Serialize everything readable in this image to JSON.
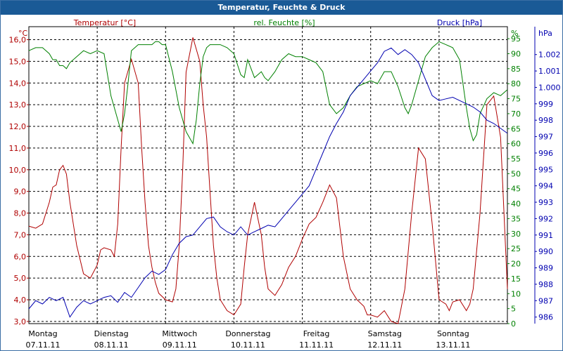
{
  "window": {
    "title": "Temperatur, Feuchte & Druck"
  },
  "chart_data": {
    "type": "line",
    "title": "Temperatur, Feuchte & Druck",
    "grid": true,
    "x_categories": [
      {
        "day": "Montag",
        "date": "07.11.11"
      },
      {
        "day": "Dienstag",
        "date": "08.11.11"
      },
      {
        "day": "Mittwoch",
        "date": "09.11.11"
      },
      {
        "day": "Donnerstag",
        "date": "10.11.11"
      },
      {
        "day": "Freitag",
        "date": "11.11.11"
      },
      {
        "day": "Samstag",
        "date": "12.11.11"
      },
      {
        "day": "Sonntag",
        "date": "13.11.11"
      }
    ],
    "x_range": [
      0,
      7
    ],
    "axes": {
      "temperature": {
        "label": "Temperatur [°C]",
        "unit": "°C",
        "range": [
          2.9,
          16.6
        ],
        "ticks": [
          "3,0",
          "4,0",
          "5,0",
          "6,0",
          "7,0",
          "8,0",
          "9,0",
          "10,0",
          "11,0",
          "12,0",
          "13,0",
          "14,0",
          "15,0",
          "16,0"
        ],
        "color": "#b00000"
      },
      "humidity": {
        "label": "rel. Feuchte [%]",
        "unit": "%",
        "range": [
          0,
          99
        ],
        "ticks": [
          "0",
          "5",
          "10",
          "15",
          "20",
          "25",
          "30",
          "35",
          "40",
          "45",
          "50",
          "55",
          "60",
          "65",
          "70",
          "75",
          "80",
          "85",
          "90",
          "95"
        ],
        "color": "#008000"
      },
      "pressure": {
        "label": "Druck [hPa]",
        "unit": "hPa",
        "range": [
          985.6,
          1003.7
        ],
        "ticks": [
          "986",
          "987",
          "988",
          "989",
          "990",
          "991",
          "992",
          "993",
          "994",
          "995",
          "996",
          "997",
          "998",
          "999",
          "1.000",
          "1.001",
          "1.002"
        ],
        "color": "#0000b0"
      }
    },
    "series": [
      {
        "name": "Temperatur [°C]",
        "axis": "temperature",
        "color": "#b00000",
        "x": [
          0,
          0.1,
          0.2,
          0.3,
          0.35,
          0.4,
          0.45,
          0.5,
          0.55,
          0.6,
          0.7,
          0.8,
          0.9,
          1.0,
          1.05,
          1.1,
          1.2,
          1.25,
          1.3,
          1.35,
          1.4,
          1.5,
          1.6,
          1.65,
          1.7,
          1.75,
          1.8,
          1.85,
          1.9,
          2.0,
          2.1,
          2.15,
          2.2,
          2.25,
          2.3,
          2.4,
          2.5,
          2.55,
          2.6,
          2.65,
          2.7,
          2.75,
          2.8,
          2.9,
          3.0,
          3.1,
          3.15,
          3.2,
          3.3,
          3.4,
          3.45,
          3.5,
          3.6,
          3.7,
          3.8,
          3.9,
          4.0,
          4.1,
          4.2,
          4.3,
          4.4,
          4.5,
          4.6,
          4.7,
          4.8,
          4.9,
          4.95,
          5.0,
          5.1,
          5.2,
          5.3,
          5.4,
          5.5,
          5.6,
          5.7,
          5.8,
          5.9,
          6.0,
          6.1,
          6.15,
          6.2,
          6.3,
          6.4,
          6.45,
          6.5,
          6.6,
          6.7,
          6.8,
          6.9,
          7.0
        ],
        "values": [
          7.4,
          7.3,
          7.5,
          8.5,
          9.2,
          9.3,
          10.0,
          10.2,
          9.8,
          8.5,
          6.5,
          5.2,
          5.0,
          5.6,
          6.3,
          6.4,
          6.3,
          6.0,
          7.5,
          11.0,
          14.0,
          15.1,
          14.0,
          11.0,
          8.5,
          6.5,
          5.5,
          4.8,
          4.3,
          4.0,
          3.9,
          4.5,
          6.5,
          10.0,
          14.5,
          16.1,
          15.0,
          13.0,
          11.5,
          9.0,
          6.5,
          5.0,
          4.0,
          3.5,
          3.3,
          3.8,
          5.5,
          7.0,
          8.5,
          7.0,
          5.5,
          4.5,
          4.2,
          4.7,
          5.5,
          6.0,
          6.8,
          7.5,
          7.8,
          8.5,
          9.3,
          8.7,
          6.0,
          4.5,
          4.0,
          3.7,
          3.3,
          3.3,
          3.2,
          3.5,
          3.0,
          2.9,
          4.5,
          8.0,
          11.0,
          10.5,
          7.5,
          4.0,
          3.8,
          3.5,
          3.9,
          4.0,
          3.5,
          3.8,
          4.5,
          8.0,
          13.0,
          13.4,
          11.5,
          4.5
        ]
      },
      {
        "name": "rel. Feuchte [%]",
        "axis": "humidity",
        "color": "#008000",
        "x": [
          0,
          0.1,
          0.2,
          0.3,
          0.35,
          0.4,
          0.45,
          0.5,
          0.55,
          0.6,
          0.7,
          0.8,
          0.9,
          1.0,
          1.1,
          1.2,
          1.3,
          1.35,
          1.4,
          1.45,
          1.5,
          1.6,
          1.7,
          1.8,
          1.85,
          1.9,
          1.95,
          2.0,
          2.1,
          2.2,
          2.3,
          2.4,
          2.45,
          2.5,
          2.55,
          2.6,
          2.65,
          2.7,
          2.75,
          2.8,
          2.9,
          3.0,
          3.1,
          3.15,
          3.2,
          3.3,
          3.4,
          3.45,
          3.5,
          3.6,
          3.7,
          3.8,
          3.9,
          4.0,
          4.1,
          4.2,
          4.3,
          4.4,
          4.5,
          4.6,
          4.7,
          4.8,
          4.9,
          5.0,
          5.1,
          5.2,
          5.3,
          5.4,
          5.5,
          5.55,
          5.6,
          5.7,
          5.8,
          5.9,
          6.0,
          6.1,
          6.2,
          6.3,
          6.4,
          6.45,
          6.5,
          6.55,
          6.6,
          6.7,
          6.8,
          6.9,
          7.0
        ],
        "values": [
          91,
          92,
          92,
          90,
          88,
          88,
          86,
          86,
          85,
          87,
          89,
          91,
          90,
          91,
          90,
          76,
          68,
          64,
          70,
          80,
          91,
          93,
          93,
          93,
          94,
          94,
          93,
          93,
          84,
          72,
          64,
          60,
          68,
          80,
          89,
          92,
          93,
          93,
          93,
          93,
          92,
          90,
          83,
          82,
          88,
          82,
          84,
          82,
          81,
          84,
          88,
          90,
          89,
          89,
          88,
          87,
          84,
          73,
          70,
          72,
          76,
          79,
          80,
          81,
          80,
          84,
          84,
          79,
          72,
          70,
          73,
          81,
          89,
          92,
          94,
          93,
          92,
          88,
          72,
          65,
          61,
          63,
          70,
          75,
          77,
          76,
          78
        ]
      },
      {
        "name": "Druck [hPa]",
        "axis": "pressure",
        "color": "#0000b0",
        "x": [
          0,
          0.1,
          0.2,
          0.3,
          0.4,
          0.5,
          0.6,
          0.7,
          0.8,
          0.9,
          1.0,
          1.1,
          1.2,
          1.3,
          1.4,
          1.5,
          1.6,
          1.7,
          1.8,
          1.9,
          2.0,
          2.1,
          2.2,
          2.3,
          2.4,
          2.5,
          2.6,
          2.7,
          2.8,
          2.9,
          3.0,
          3.1,
          3.2,
          3.3,
          3.4,
          3.5,
          3.6,
          3.7,
          3.8,
          3.9,
          4.0,
          4.1,
          4.2,
          4.3,
          4.4,
          4.5,
          4.6,
          4.7,
          4.8,
          4.9,
          5.0,
          5.1,
          5.2,
          5.3,
          5.4,
          5.5,
          5.6,
          5.7,
          5.8,
          5.9,
          6.0,
          6.1,
          6.2,
          6.3,
          6.4,
          6.5,
          6.6,
          6.7,
          6.8,
          6.9,
          7.0
        ],
        "values": [
          986.5,
          987.0,
          986.8,
          987.2,
          987.0,
          987.2,
          986.0,
          986.6,
          987.0,
          986.8,
          987.0,
          987.2,
          987.3,
          986.9,
          987.5,
          987.2,
          987.8,
          988.4,
          988.8,
          988.6,
          988.9,
          989.8,
          990.5,
          990.9,
          991.0,
          991.5,
          992.0,
          992.1,
          991.5,
          991.2,
          991.0,
          991.5,
          991.0,
          991.2,
          991.4,
          991.6,
          991.5,
          992.0,
          992.5,
          993.0,
          993.5,
          994.0,
          995.0,
          996.0,
          997.0,
          997.8,
          998.5,
          999.5,
          1000.0,
          1000.5,
          1001.0,
          1001.5,
          1002.2,
          1002.4,
          1002.0,
          1002.3,
          1002.0,
          1001.5,
          1000.5,
          999.5,
          999.2,
          999.3,
          999.4,
          999.2,
          999.0,
          998.8,
          998.5,
          998.0,
          997.8,
          997.5,
          997.2
        ]
      }
    ]
  }
}
